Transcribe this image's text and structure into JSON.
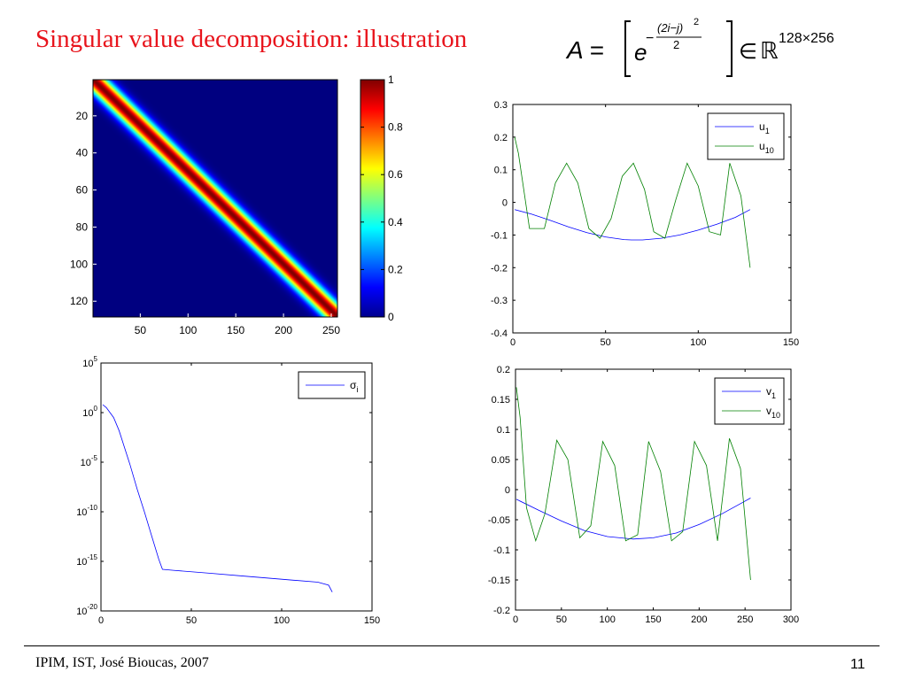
{
  "slide": {
    "title": "Singular value decomposition: illustration",
    "formula": {
      "lhs": "A =",
      "base": "e",
      "exponent_sign": "−",
      "numerator": "(2i−j)",
      "numerator_power": "2",
      "denominator": "2",
      "member_of": "∈",
      "space": "ℝ",
      "space_exponent": "128×256"
    },
    "footer": "IPIM, IST, José Bioucas, 2007",
    "page_number": "11"
  },
  "colors": {
    "title": "#e8141c",
    "series_1": "#0000ff",
    "series_2": "#008000",
    "colormap": "jet"
  },
  "chart_data": [
    {
      "id": "matrix-heatmap",
      "type": "heatmap",
      "description_function": "exp(-(2i-j)^2/2)",
      "rows": 128,
      "cols": 256,
      "xticks": [
        50,
        100,
        150,
        200,
        250
      ],
      "yticks": [
        20,
        40,
        60,
        80,
        100,
        120
      ],
      "xlim": [
        0.5,
        256.5
      ],
      "ylim": [
        0.5,
        128.5
      ],
      "colorbar": {
        "range": [
          0,
          1
        ],
        "ticks": [
          0,
          0.2,
          0.4,
          0.6,
          0.8,
          1
        ]
      }
    },
    {
      "id": "left-singular-vectors",
      "type": "line",
      "xlim": [
        0,
        150
      ],
      "ylim": [
        -0.4,
        0.3
      ],
      "xticks": [
        0,
        50,
        100,
        150
      ],
      "yticks": [
        0.3,
        0.2,
        0.1,
        0,
        -0.1,
        -0.2,
        -0.3,
        -0.4
      ],
      "legend_position": "top-right",
      "series": [
        {
          "name": "u",
          "subscript": "1",
          "color": "#0000ff",
          "x": [
            1,
            10,
            20,
            30,
            40,
            50,
            60,
            64,
            70,
            80,
            90,
            100,
            110,
            120,
            128
          ],
          "y": [
            -0.022,
            -0.036,
            -0.055,
            -0.075,
            -0.093,
            -0.106,
            -0.114,
            -0.115,
            -0.115,
            -0.11,
            -0.1,
            -0.085,
            -0.067,
            -0.046,
            -0.022
          ]
        },
        {
          "name": "u",
          "subscript": "10",
          "color": "#008000",
          "x": [
            1,
            3,
            9,
            17,
            23,
            29,
            35,
            41,
            47,
            53,
            59,
            65,
            71,
            76,
            82,
            88,
            94,
            100,
            106,
            112,
            117,
            123,
            128
          ],
          "y": [
            0.2,
            0.15,
            -0.08,
            -0.08,
            0.06,
            0.12,
            0.06,
            -0.08,
            -0.11,
            -0.05,
            0.08,
            0.12,
            0.04,
            -0.09,
            -0.11,
            0.01,
            0.12,
            0.05,
            -0.09,
            -0.1,
            0.12,
            0.02,
            -0.2
          ]
        }
      ]
    },
    {
      "id": "singular-values",
      "type": "line",
      "yscale": "log",
      "xlim": [
        0,
        150
      ],
      "ylim_exponents": [
        -20,
        5
      ],
      "xticks": [
        0,
        50,
        100,
        150
      ],
      "ytick_base": "10",
      "ytick_exponents": [
        5,
        0,
        -5,
        -10,
        -15,
        -20
      ],
      "legend_position": "top-right",
      "series": [
        {
          "name": "σ",
          "subscript": "i",
          "color": "#0000ff",
          "x": [
            1,
            3,
            5,
            7,
            10,
            13,
            16,
            20,
            24,
            28,
            32,
            34,
            40,
            60,
            80,
            100,
            120,
            126,
            128
          ],
          "log10_y": [
            0.8,
            0.5,
            0.0,
            -0.5,
            -1.8,
            -3.5,
            -5.2,
            -7.7,
            -10.0,
            -12.4,
            -14.8,
            -15.8,
            -15.9,
            -16.2,
            -16.5,
            -16.8,
            -17.1,
            -17.4,
            -18.1
          ]
        }
      ]
    },
    {
      "id": "right-singular-vectors",
      "type": "line",
      "xlim": [
        0,
        300
      ],
      "ylim": [
        -0.2,
        0.2
      ],
      "xticks": [
        0,
        50,
        100,
        150,
        200,
        250,
        300
      ],
      "yticks": [
        0.2,
        0.15,
        0.1,
        0.05,
        0,
        -0.05,
        -0.1,
        -0.15,
        -0.2
      ],
      "legend_position": "top-right",
      "series": [
        {
          "name": "v",
          "subscript": "1",
          "color": "#0000ff",
          "x": [
            1,
            25,
            50,
            75,
            100,
            128,
            150,
            175,
            200,
            225,
            256
          ],
          "y": [
            -0.016,
            -0.034,
            -0.052,
            -0.068,
            -0.078,
            -0.082,
            -0.08,
            -0.072,
            -0.058,
            -0.04,
            -0.014
          ]
        },
        {
          "name": "v",
          "subscript": "10",
          "color": "#008000",
          "x": [
            1,
            5,
            12,
            22,
            32,
            45,
            57,
            70,
            82,
            95,
            108,
            120,
            133,
            145,
            158,
            170,
            182,
            195,
            208,
            220,
            233,
            245,
            256
          ],
          "y": [
            0.17,
            0.12,
            -0.03,
            -0.085,
            -0.04,
            0.082,
            0.05,
            -0.08,
            -0.06,
            0.08,
            0.04,
            -0.085,
            -0.075,
            0.08,
            0.03,
            -0.085,
            -0.07,
            0.08,
            0.04,
            -0.085,
            0.085,
            0.035,
            -0.15
          ]
        }
      ]
    }
  ]
}
